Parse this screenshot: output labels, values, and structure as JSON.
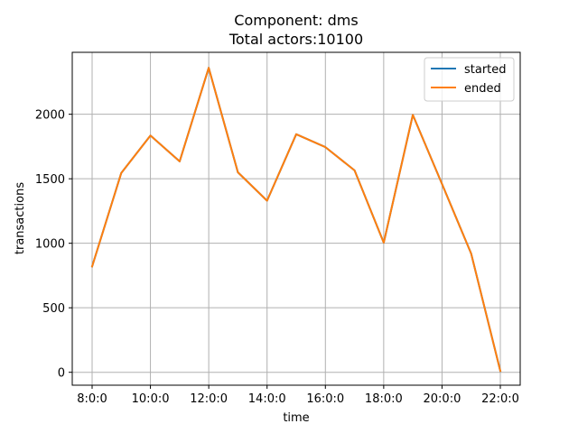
{
  "chart_data": {
    "type": "line",
    "title": "Component: dms",
    "subtitle": "Total actors:10100",
    "xlabel": "time",
    "ylabel": "transactions",
    "x": [
      "8:0:0",
      "9:0:0",
      "10:0:0",
      "11:0:0",
      "12:0:0",
      "13:0:0",
      "14:0:0",
      "15:0:0",
      "16:0:0",
      "17:0:0",
      "18:0:0",
      "19:0:0",
      "20:0:0",
      "21:0:0",
      "22:0:0"
    ],
    "xticks": [
      "8:0:0",
      "10:0:0",
      "12:0:0",
      "14:0:0",
      "16:0:0",
      "18:0:0",
      "20:0:0",
      "22:0:0"
    ],
    "yticks": [
      0,
      500,
      1000,
      1500,
      2000
    ],
    "ylim": [
      -100,
      2480
    ],
    "grid": true,
    "legend_position": "top-right",
    "series": [
      {
        "name": "started",
        "color": "#1f77b4",
        "values": [
          820,
          1545,
          1835,
          1635,
          2360,
          1550,
          1330,
          1845,
          1745,
          1565,
          1005,
          1995,
          1460,
          920,
          10
        ]
      },
      {
        "name": "ended",
        "color": "#ff7f0e",
        "values": [
          820,
          1545,
          1835,
          1635,
          2360,
          1550,
          1330,
          1845,
          1745,
          1565,
          1005,
          1995,
          1460,
          920,
          10
        ]
      }
    ]
  }
}
